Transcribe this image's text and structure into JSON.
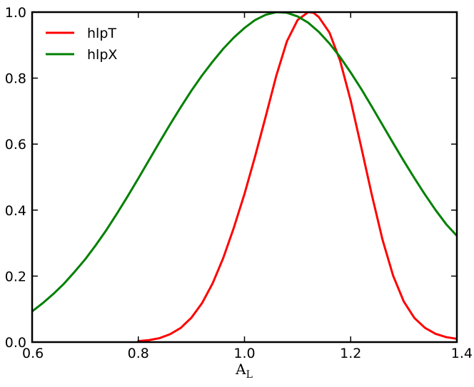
{
  "chart_data": {
    "type": "line",
    "title": "",
    "xlabel": "A",
    "xlabel_sub": "L",
    "ylabel": "",
    "xlim": [
      0.6,
      1.4
    ],
    "ylim": [
      0.0,
      1.0
    ],
    "xticks": [
      "0.6",
      "0.8",
      "1.0",
      "1.2",
      "1.4"
    ],
    "yticks": [
      "0.0",
      "0.2",
      "0.4",
      "0.6",
      "0.8",
      "1.0"
    ],
    "grid": false,
    "legend": "top-left",
    "series": [
      {
        "name": "hlpT",
        "color": "#ff0000",
        "x": [
          0.8,
          0.82,
          0.84,
          0.86,
          0.88,
          0.9,
          0.92,
          0.94,
          0.96,
          0.98,
          1.0,
          1.02,
          1.04,
          1.06,
          1.08,
          1.1,
          1.12,
          1.13,
          1.14,
          1.16,
          1.18,
          1.2,
          1.22,
          1.24,
          1.26,
          1.28,
          1.3,
          1.32,
          1.34,
          1.36,
          1.38,
          1.4
        ],
        "y": [
          0.003,
          0.006,
          0.012,
          0.024,
          0.043,
          0.074,
          0.118,
          0.178,
          0.255,
          0.347,
          0.449,
          0.563,
          0.684,
          0.808,
          0.912,
          0.976,
          1.0,
          0.998,
          0.985,
          0.938,
          0.853,
          0.732,
          0.59,
          0.445,
          0.31,
          0.201,
          0.123,
          0.073,
          0.043,
          0.025,
          0.015,
          0.01
        ]
      },
      {
        "name": "hlpX",
        "color": "#008000",
        "x": [
          0.6,
          0.62,
          0.64,
          0.66,
          0.68,
          0.7,
          0.72,
          0.74,
          0.76,
          0.78,
          0.8,
          0.82,
          0.84,
          0.86,
          0.88,
          0.9,
          0.92,
          0.94,
          0.96,
          0.98,
          1.0,
          1.02,
          1.04,
          1.06,
          1.08,
          1.1,
          1.12,
          1.14,
          1.16,
          1.18,
          1.2,
          1.22,
          1.24,
          1.26,
          1.28,
          1.3,
          1.32,
          1.34,
          1.36,
          1.38,
          1.4
        ],
        "y": [
          0.093,
          0.118,
          0.146,
          0.177,
          0.213,
          0.251,
          0.294,
          0.34,
          0.39,
          0.442,
          0.496,
          0.551,
          0.606,
          0.66,
          0.712,
          0.762,
          0.808,
          0.85,
          0.889,
          0.923,
          0.952,
          0.976,
          0.992,
          1.0,
          0.998,
          0.987,
          0.968,
          0.94,
          0.905,
          0.864,
          0.817,
          0.767,
          0.713,
          0.658,
          0.603,
          0.549,
          0.497,
          0.447,
          0.4,
          0.357,
          0.322
        ]
      }
    ]
  }
}
